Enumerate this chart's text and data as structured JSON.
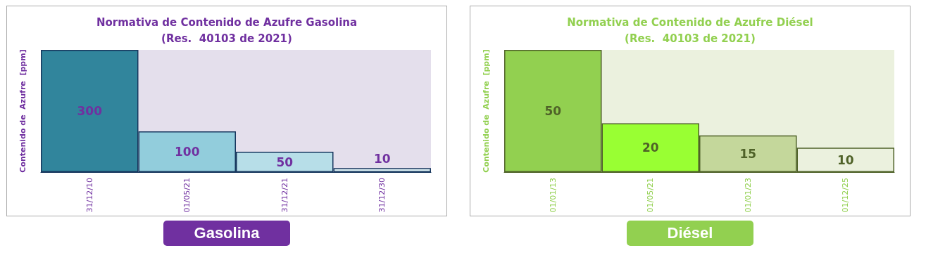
{
  "chart_data": [
    {
      "type": "bar",
      "title": "Normativa de Contenido de Azufre Gasolina",
      "subtitle": "(Res.  40103 de 2021)",
      "ylabel": "Contenido de  Azufre  [ppm]",
      "categories": [
        "31/12/10",
        "01/05/21",
        "31/12/21",
        "31/12/30"
      ],
      "values": [
        300,
        100,
        50,
        10
      ],
      "colors": [
        "#31859c",
        "#92cddc",
        "#b7dee8",
        "#daeef3"
      ],
      "data_labels": true,
      "annotations": [
        "Gasolina"
      ]
    },
    {
      "type": "bar",
      "title": "Normativa de Contenido de Azufre Diésel",
      "subtitle": "(Res.  40103 de 2021)",
      "ylabel": "Contenido de  Azufre  [ppm]",
      "categories": [
        "01/01/13",
        "01/05/21",
        "01/01/23",
        "01/12/25"
      ],
      "values": [
        50,
        20,
        15,
        10
      ],
      "colors": [
        "#92d050",
        "#99ff33",
        "#c4d79b",
        "#ebf1de"
      ],
      "data_labels": true,
      "annotations": [
        "Diésel"
      ]
    }
  ]
}
